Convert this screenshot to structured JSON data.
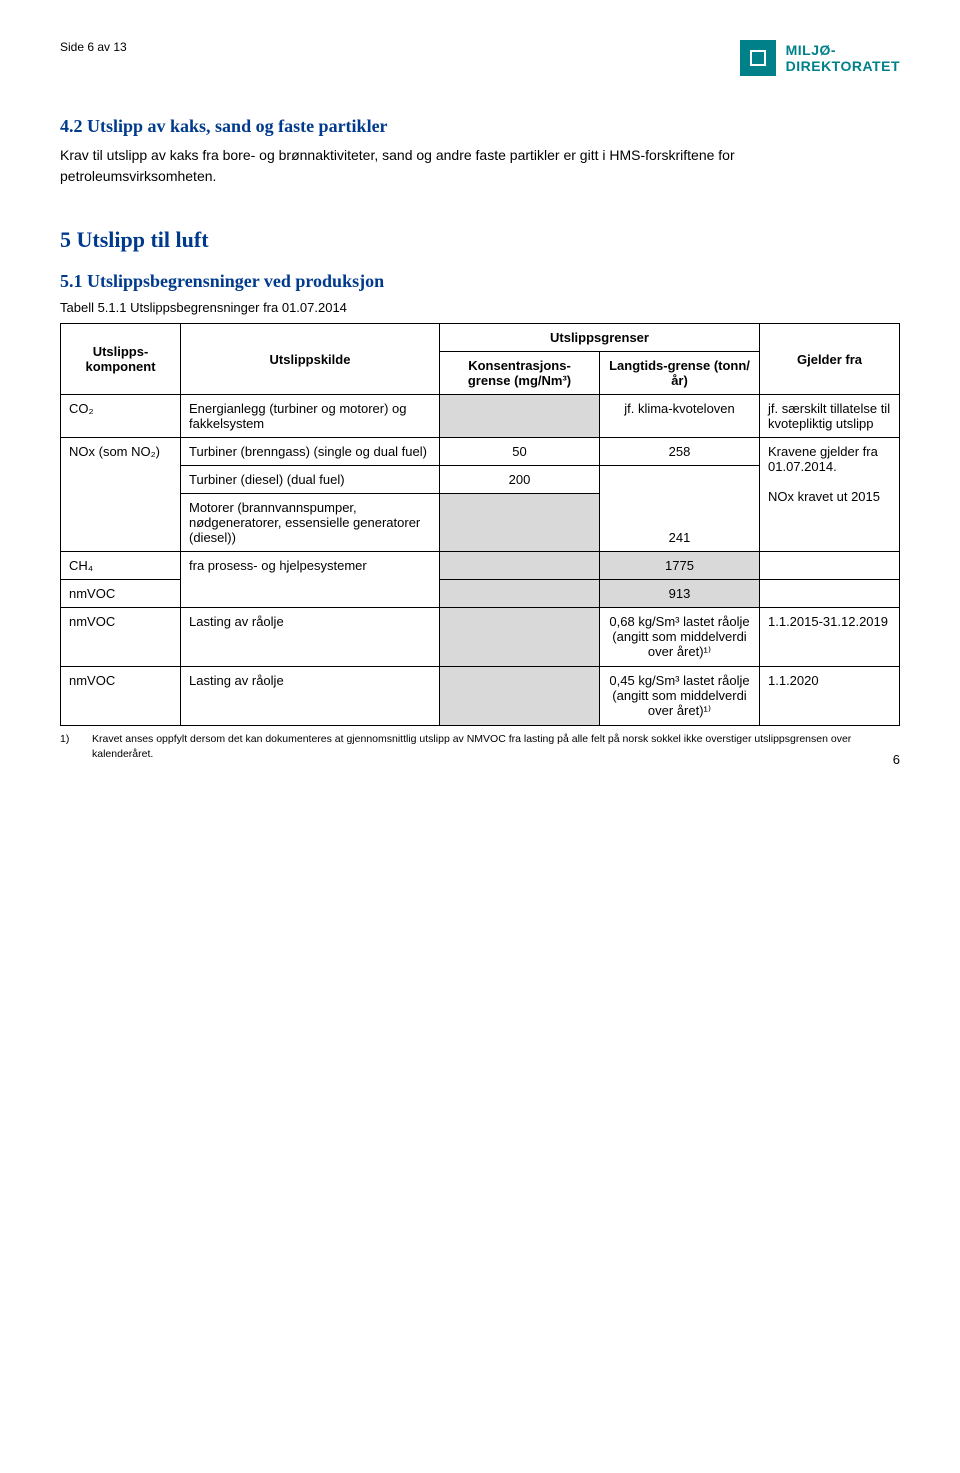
{
  "header": {
    "page_ref": "Side 6 av 13",
    "logo_line1": "MILJØ-",
    "logo_line2": "DIREKTORATET"
  },
  "section_4_2": {
    "heading": "4.2   Utslipp av kaks, sand og faste partikler",
    "body": "Krav til utslipp av kaks fra bore- og brønnaktiviteter, sand og andre faste partikler er gitt i HMS-forskriftene for petroleumsvirksomheten."
  },
  "section_5": {
    "heading": "5   Utslipp til luft"
  },
  "section_5_1": {
    "heading": "5.1   Utslippsbegrensninger ved produksjon",
    "table_caption": "Tabell 5.1.1 Utslippsbegrensninger fra 01.07.2014",
    "col_headers": {
      "komponent": "Utslipps-komponent",
      "kilde": "Utslippskilde",
      "grenser": "Utslippsgrenser",
      "konsentrasjon": "Konsentrasjons-grense (mg/Nm³)",
      "langtids": "Langtids-grense (tonn/år)",
      "gjelder": "Gjelder fra"
    },
    "rows": {
      "co2": {
        "komp": "CO₂",
        "kilde": "Energianlegg (turbiner og motorer) og fakkelsystem",
        "langtids": "jf. klima-kvoteloven",
        "gjelder": "jf. særskilt tillatelse til kvotepliktig utslipp"
      },
      "nox": {
        "komp": "NOx (som NO₂)",
        "kilde1": "Turbiner (brenngass) (single og dual fuel)",
        "kons1": "50",
        "lang1": "258",
        "kilde2": "Turbiner (diesel) (dual fuel)",
        "kons2": "200",
        "kilde3": "Motorer (brannvannspumper, nødgeneratorer, essensielle generatorer (diesel))",
        "lang3": "241",
        "gjelder": "Kravene gjelder fra 01.07.2014.\n\nNOx kravet ut 2015"
      },
      "ch4": {
        "komp": "CH₄",
        "kilde": "fra prosess- og hjelpesystemer",
        "langtids": "1775"
      },
      "nmvoc1": {
        "komp": "nmVOC",
        "langtids": "913"
      },
      "nmvoc2": {
        "komp": "nmVOC",
        "kilde": "Lasting av råolje",
        "langtids": "0,68 kg/Sm³ lastet råolje (angitt som middelverdi over året)¹⁾",
        "gjelder": "1.1.2015-31.12.2019"
      },
      "nmvoc3": {
        "komp": "nmVOC",
        "kilde": "Lasting av råolje",
        "langtids": "0,45 kg/Sm³ lastet råolje (angitt som middelverdi over året)¹⁾",
        "gjelder": "1.1.2020"
      }
    },
    "footnote_marker": "1)",
    "footnote": "Kravet anses oppfylt dersom det kan dokumenteres at gjennomsnittlig utslipp av NMVOC fra lasting på alle felt på norsk sokkel ikke overstiger utslippsgrensen over kalenderåret."
  },
  "page_number": "6",
  "style": {
    "heading_color": "#003a8c",
    "logo_color": "#00818a",
    "shade_color": "#d9d9d9",
    "border_color": "#000000",
    "body_font_size": 14,
    "table_font_size": 13,
    "footnote_font_size": 10.5
  }
}
